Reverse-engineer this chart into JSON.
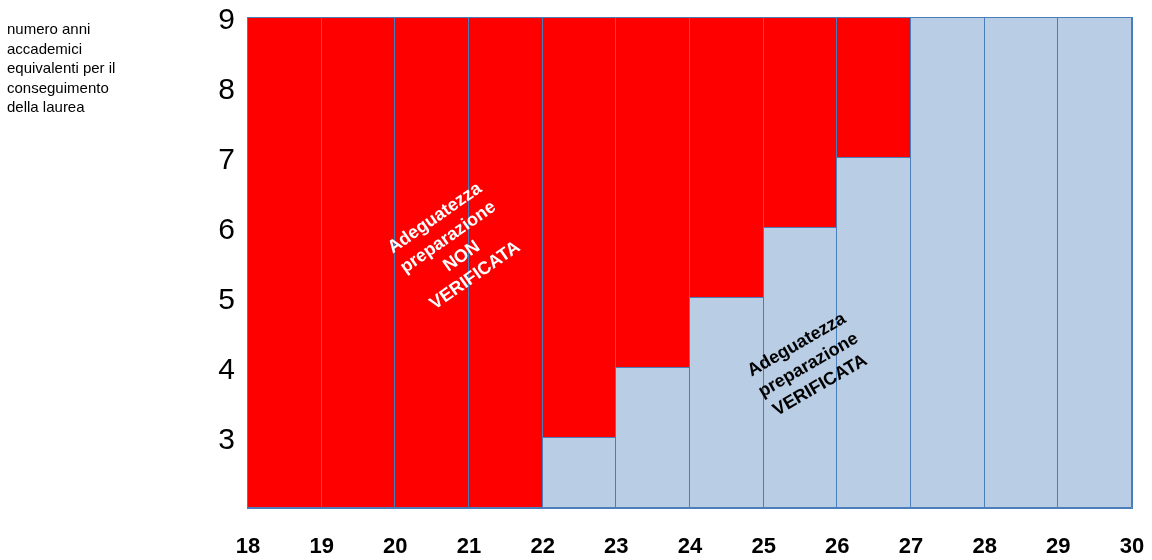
{
  "chart_data": {
    "type": "bar",
    "x": [
      18.5,
      19.5,
      20.5,
      21.5,
      22.5,
      23.5,
      24.5,
      25.5,
      26.5,
      27.5,
      28.5,
      29.5
    ],
    "series": [
      {
        "color": "#b9cde5",
        "base": [
          null,
          null,
          null,
          null,
          2,
          2,
          2,
          2,
          2,
          2,
          2,
          2
        ],
        "values": [
          null,
          null,
          null,
          null,
          1,
          2,
          3,
          4,
          5,
          7,
          7,
          7
        ]
      },
      {
        "color": "#ff0000",
        "base": [
          2,
          2,
          2,
          2,
          3,
          4,
          5,
          6,
          7,
          null,
          null,
          null
        ],
        "values": [
          7,
          7,
          7,
          7,
          6,
          5,
          4,
          3,
          2,
          null,
          null,
          null
        ]
      }
    ],
    "xlim": [
      18,
      30
    ],
    "xticks": [
      18,
      19,
      20,
      21,
      22,
      23,
      24,
      25,
      26,
      27,
      28,
      29,
      30
    ],
    "ylim": [
      2,
      9
    ],
    "yticks": [
      3,
      4,
      5,
      6,
      7,
      8,
      9
    ],
    "grid": true,
    "annotations": [
      "numero anni\naccademici\nequivalenti per il\nconseguimento\ndella laurea",
      "Adeguatezza\npreparazione\nNON\nVERIFICATA",
      "Adeguatezza\npreparazione\nVERIFICATA"
    ]
  }
}
